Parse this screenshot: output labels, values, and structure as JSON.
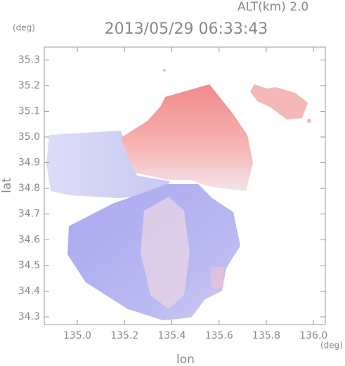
{
  "chart_data": {
    "type": "map",
    "title": "2013/05/29 06:33:43",
    "altitude_label": "ALT(km) 2.0",
    "y_unit": "(deg)",
    "x_unit": "(deg)",
    "xlabel": "lon",
    "ylabel": "lat",
    "xlim": [
      134.86,
      136.05
    ],
    "ylim": [
      34.27,
      35.35
    ],
    "xticks": [
      {
        "value": 135,
        "label": "135.0"
      },
      135.2,
      135.4,
      135.6,
      135.8,
      {
        "value": 136,
        "label": "136.0"
      }
    ],
    "yticks": [
      34.3,
      34.4,
      34.5,
      34.6,
      34.7,
      34.8,
      34.9,
      {
        "value": 35,
        "label": "35.0"
      },
      35.1,
      35.2,
      35.3
    ]
  }
}
